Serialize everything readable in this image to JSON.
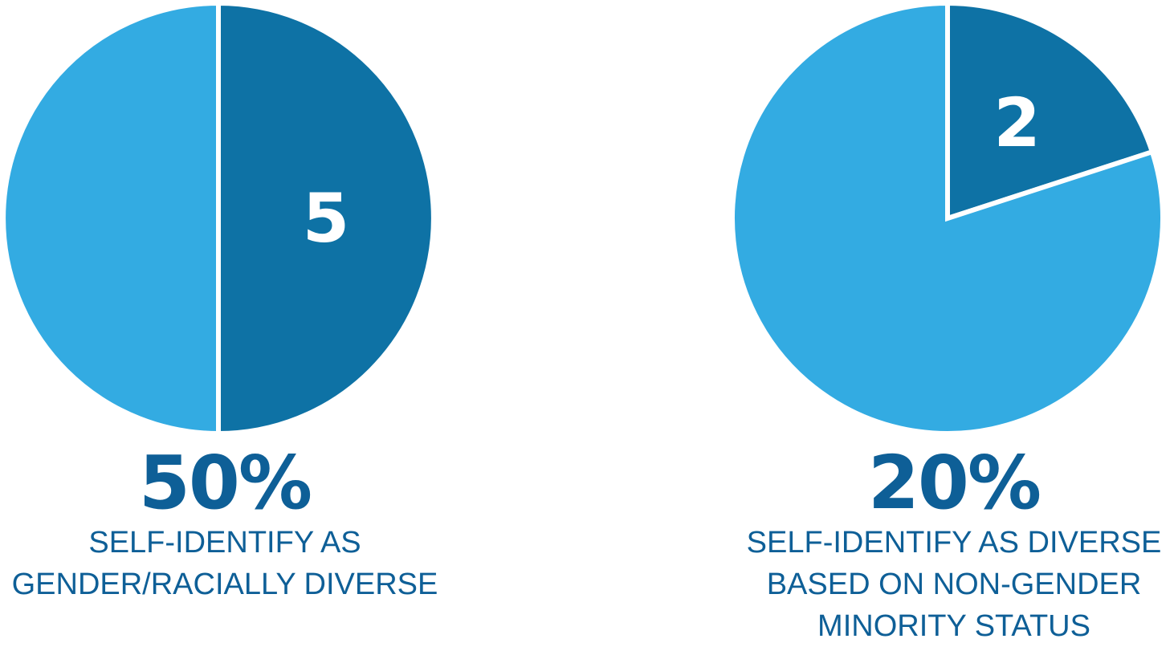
{
  "chart_data": [
    {
      "type": "pie",
      "percent_label": "50%",
      "caption_lines": [
        "SELF-IDENTIFY AS",
        "GENDER/RACIALLY DIVERSE"
      ],
      "slices": [
        {
          "value": 5,
          "label": "5",
          "color": "#0e72a5"
        },
        {
          "value": 5,
          "label": "",
          "color": "#33abe2"
        }
      ]
    },
    {
      "type": "pie",
      "percent_label": "20%",
      "caption_lines": [
        "SELF-IDENTIFY AS DIVERSE",
        "BASED ON NON-GENDER",
        "MINORITY STATUS"
      ],
      "slices": [
        {
          "value": 2,
          "label": "2",
          "color": "#0e72a5"
        },
        {
          "value": 8,
          "label": "",
          "color": "#33abe2"
        }
      ]
    }
  ],
  "colors": {
    "highlight": "#0e72a5",
    "remainder": "#33abe2",
    "text": "#0e5f97"
  }
}
